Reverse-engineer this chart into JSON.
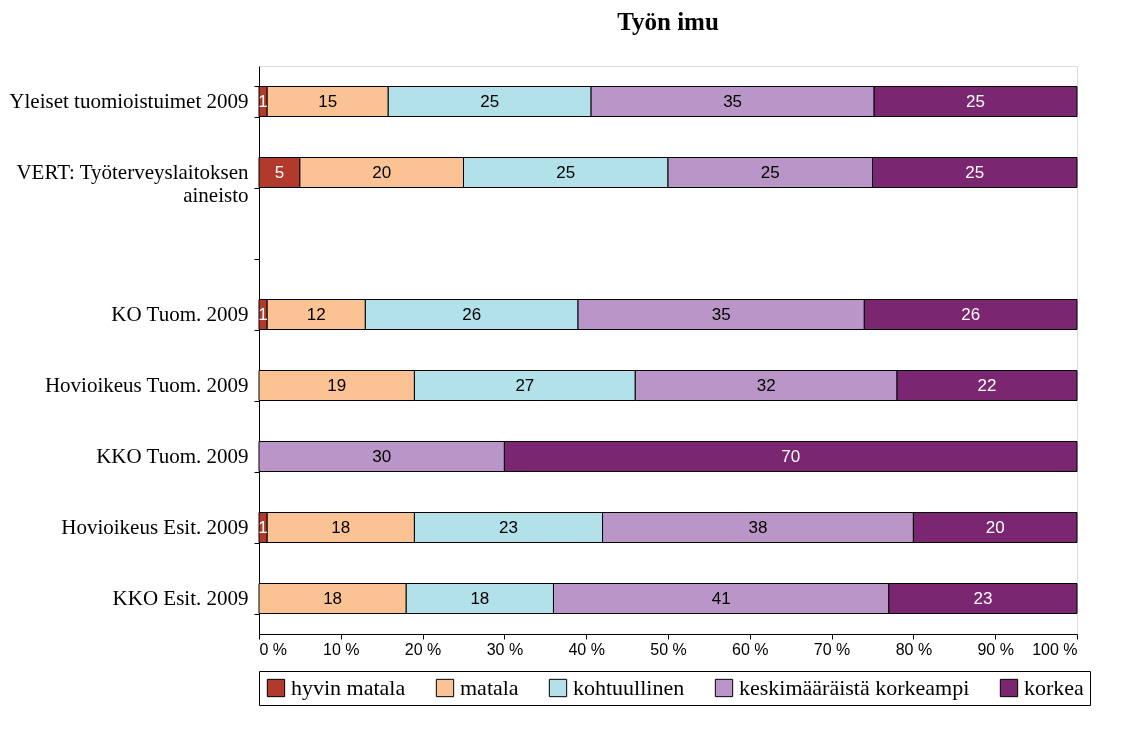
{
  "chart_data": {
    "type": "bar",
    "orientation": "horizontal",
    "stacked": true,
    "title": "Työn imu",
    "categories": [
      "Yleiset tuomioistuimet 2009",
      "VERT: Työterveyslaitoksen\naineisto",
      null,
      "KO Tuom. 2009",
      "Hovioikeus Tuom. 2009",
      "KKO Tuom. 2009",
      "Hovioikeus Esit. 2009",
      "KKO Esit. 2009"
    ],
    "series": [
      {
        "name": "hyvin matala",
        "color": "#b23a2c",
        "values": [
          1,
          5,
          null,
          1,
          null,
          null,
          1,
          null
        ],
        "value_labels": [
          "1",
          "5",
          null,
          "1",
          null,
          null,
          "1",
          null
        ]
      },
      {
        "name": "matala",
        "color": "#fbc393",
        "values": [
          14.8,
          20,
          null,
          12,
          19,
          null,
          18,
          18
        ],
        "value_labels": [
          "15",
          "20",
          null,
          "12",
          "19",
          null,
          "18",
          "18"
        ]
      },
      {
        "name": "kohtuullinen",
        "color": "#b2e1ea",
        "values": [
          24.8,
          25,
          null,
          26,
          27,
          null,
          23,
          18
        ],
        "value_labels": [
          "25",
          "25",
          null,
          "26",
          "27",
          null,
          "23",
          "18"
        ]
      },
      {
        "name": "keskimääräistä korkeampi",
        "color": "#b996c7",
        "values": [
          34.6,
          25,
          null,
          35,
          32,
          30,
          38,
          41
        ],
        "value_labels": [
          "35",
          "25",
          null,
          "35",
          "32",
          "30",
          "38",
          "41"
        ]
      },
      {
        "name": "korkea",
        "color": "#7a2670",
        "values": [
          24.8,
          25,
          null,
          26,
          22,
          70,
          20,
          23
        ],
        "value_labels": [
          "25",
          "25",
          null,
          "26",
          "22",
          "70",
          "20",
          "23"
        ]
      }
    ],
    "xlim": [
      0,
      100
    ],
    "xticks": [
      {
        "value": 0,
        "label": "0 %"
      },
      {
        "value": 10,
        "label": "10 %"
      },
      {
        "value": 20,
        "label": "20 %"
      },
      {
        "value": 30,
        "label": "30 %"
      },
      {
        "value": 40,
        "label": "40 %"
      },
      {
        "value": 50,
        "label": "50 %"
      },
      {
        "value": 60,
        "label": "60 %"
      },
      {
        "value": 70,
        "label": "70 %"
      },
      {
        "value": 80,
        "label": "80 %"
      },
      {
        "value": 90,
        "label": "90 %"
      },
      {
        "value": 100,
        "label": "100 %"
      }
    ],
    "grid": false,
    "legend": "bottom"
  }
}
